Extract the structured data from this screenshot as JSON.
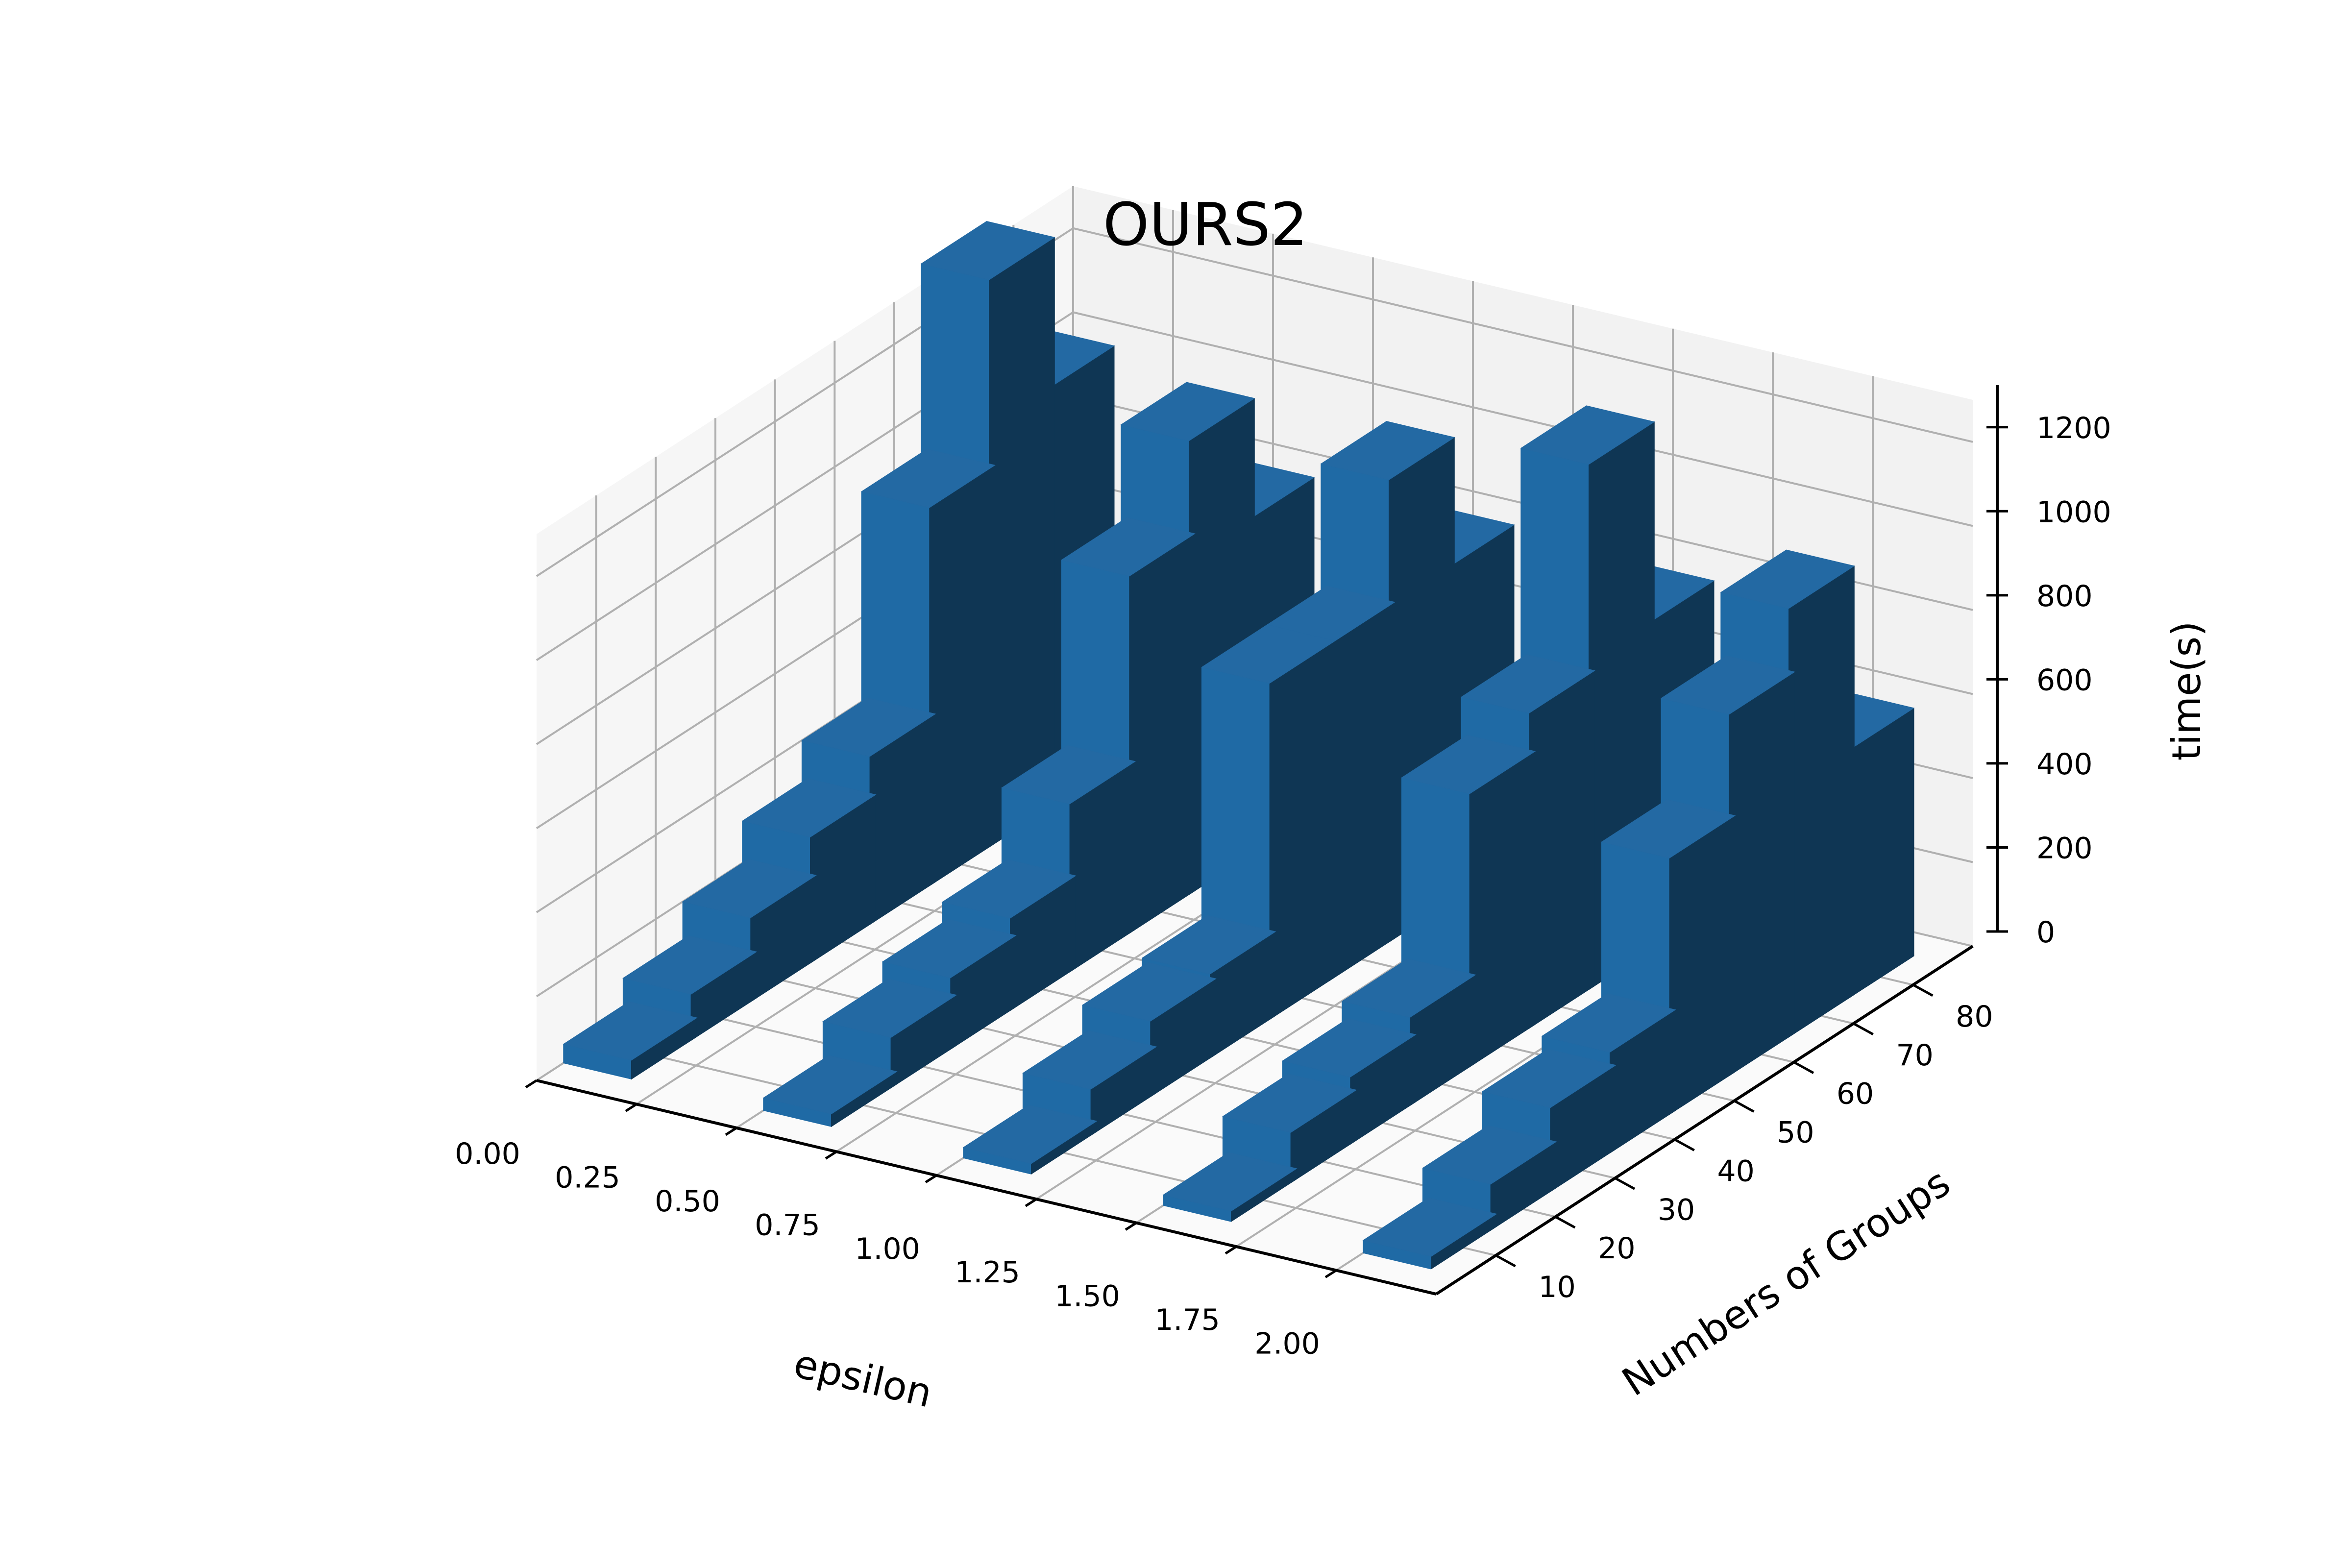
{
  "chart_data": {
    "type": "bar3d",
    "title": "OURS2",
    "xlabel": "epsilon",
    "ylabel": "Numbers of Groups",
    "zlabel": "time(s)",
    "x_ticks": [
      "0.00",
      "0.25",
      "0.50",
      "0.75",
      "1.00",
      "1.25",
      "1.50",
      "1.75",
      "2.00"
    ],
    "y_ticks": [
      "10",
      "20",
      "30",
      "40",
      "50",
      "60",
      "70",
      "80"
    ],
    "z_ticks": [
      "0",
      "200",
      "400",
      "600",
      "800",
      "1000",
      "1200"
    ],
    "xlim": [
      0,
      2.25
    ],
    "ylim": [
      0,
      90
    ],
    "zlim": [
      0,
      1300
    ],
    "grid": true,
    "bars": [
      {
        "x": 0,
        "y": 10,
        "z": 45
      },
      {
        "x": 0,
        "y": 20,
        "z": 110
      },
      {
        "x": 0,
        "y": 30,
        "z": 200
      },
      {
        "x": 0,
        "y": 40,
        "z": 300
      },
      {
        "x": 0,
        "y": 50,
        "z": 400
      },
      {
        "x": 0,
        "y": 60,
        "z": 900
      },
      {
        "x": 0,
        "y": 70,
        "z": 1350
      },
      {
        "x": 0,
        "y": 80,
        "z": 1000
      },
      {
        "x": 0.5,
        "y": 10,
        "z": 30
      },
      {
        "x": 0.5,
        "y": 20,
        "z": 120
      },
      {
        "x": 0.5,
        "y": 30,
        "z": 170
      },
      {
        "x": 0.5,
        "y": 40,
        "z": 220
      },
      {
        "x": 0.5,
        "y": 50,
        "z": 400
      },
      {
        "x": 0.5,
        "y": 60,
        "z": 850
      },
      {
        "x": 0.5,
        "y": 70,
        "z": 1080
      },
      {
        "x": 0.5,
        "y": 80,
        "z": 800
      },
      {
        "x": 1.0,
        "y": 10,
        "z": 25
      },
      {
        "x": 1.0,
        "y": 20,
        "z": 110
      },
      {
        "x": 1.0,
        "y": 30,
        "z": 180
      },
      {
        "x": 1.0,
        "y": 40,
        "z": 200
      },
      {
        "x": 1.0,
        "y": 50,
        "z": 800
      },
      {
        "x": 1.0,
        "y": 60,
        "z": 800
      },
      {
        "x": 1.0,
        "y": 70,
        "z": 1100
      },
      {
        "x": 1.0,
        "y": 80,
        "z": 800
      },
      {
        "x": 1.5,
        "y": 10,
        "z": 25
      },
      {
        "x": 1.5,
        "y": 20,
        "z": 120
      },
      {
        "x": 1.5,
        "y": 30,
        "z": 160
      },
      {
        "x": 1.5,
        "y": 40,
        "z": 210
      },
      {
        "x": 1.5,
        "y": 50,
        "z": 650
      },
      {
        "x": 1.5,
        "y": 60,
        "z": 750
      },
      {
        "x": 1.5,
        "y": 70,
        "z": 1250
      },
      {
        "x": 1.5,
        "y": 80,
        "z": 780
      },
      {
        "x": 2.0,
        "y": 10,
        "z": 30
      },
      {
        "x": 2.0,
        "y": 20,
        "z": 110
      },
      {
        "x": 2.0,
        "y": 30,
        "z": 200
      },
      {
        "x": 2.0,
        "y": 40,
        "z": 240
      },
      {
        "x": 2.0,
        "y": 50,
        "z": 610
      },
      {
        "x": 2.0,
        "y": 60,
        "z": 860
      },
      {
        "x": 2.0,
        "y": 70,
        "z": 1020
      },
      {
        "x": 2.0,
        "y": 80,
        "z": 590
      }
    ],
    "colors": {
      "bar_top": "#2369a3",
      "bar_front": "#1f6aa5",
      "bar_side": "#0f3654",
      "pane_back": "#f2f2f2",
      "pane_left": "#f6f6f6",
      "pane_floor": "#fafafa",
      "grid": "#b0b0b0",
      "axis": "#000000"
    }
  }
}
